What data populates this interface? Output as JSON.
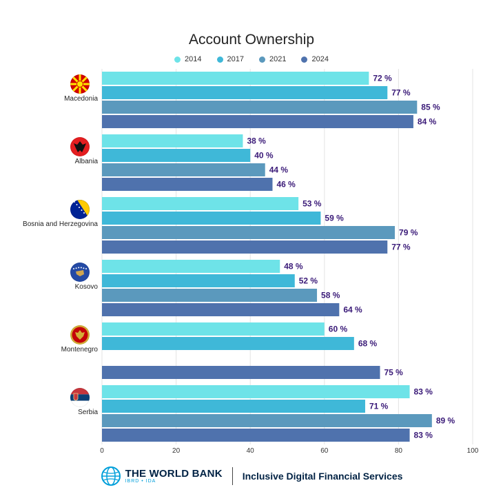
{
  "chart_data": {
    "type": "bar",
    "orientation": "horizontal",
    "title": "Account Ownership",
    "categories": [
      "Macedonia",
      "Albania",
      "Bosnia and Herzegovina",
      "Kosovo",
      "Montenegro",
      "Serbia"
    ],
    "series": [
      {
        "name": "2014",
        "color": "#6ee3e8",
        "values": [
          72,
          38,
          53,
          48,
          60,
          83
        ],
        "labels": [
          "72 %",
          "38 %",
          "53 %",
          "48 %",
          "60 %",
          "83 %"
        ]
      },
      {
        "name": "2017",
        "color": "#3fb8d8",
        "values": [
          77,
          40,
          59,
          52,
          68,
          71
        ],
        "labels": [
          "77 %",
          "40 %",
          "59 %",
          "52 %",
          "68 %",
          "71 %"
        ]
      },
      {
        "name": "2021",
        "color": "#5b99bd",
        "values": [
          85,
          44,
          79,
          58,
          null,
          89
        ],
        "labels": [
          "85 %",
          "44 %",
          "79 %",
          "58 %",
          null,
          "89 %"
        ]
      },
      {
        "name": "2024",
        "color": "#4f72ad",
        "values": [
          84,
          46,
          77,
          64,
          75,
          83
        ],
        "labels": [
          "84 %",
          "46 %",
          "77 %",
          "64 %",
          "75 %",
          "83 %"
        ]
      }
    ],
    "xlim": [
      0,
      100
    ],
    "xticks": [
      0,
      20,
      40,
      60,
      80,
      100
    ],
    "xtick_labels": [
      "0",
      "20",
      "40",
      "60",
      "80",
      "100"
    ],
    "grid": true,
    "legend_position": "top-center",
    "label_color": "#3a1a78"
  },
  "footer": {
    "org_name": "THE WORLD BANK",
    "org_sub": "IBRD • IDA",
    "tagline": "Inclusive Digital Financial Services"
  }
}
